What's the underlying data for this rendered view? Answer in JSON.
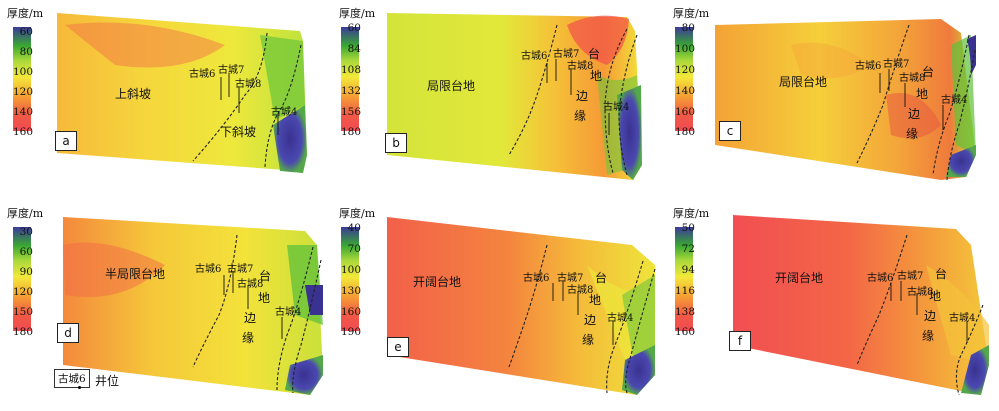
{
  "colorbar_title": "厚度/m",
  "panels": [
    {
      "label": "a",
      "ticks": [
        "60",
        "80",
        "100",
        "120",
        "140",
        "160"
      ],
      "regions": [
        "上斜坡",
        "下斜坡"
      ],
      "wells": [
        "古城6",
        "古城7",
        "古城8",
        "古城4"
      ]
    },
    {
      "label": "b",
      "ticks": [
        "60",
        "84",
        "108",
        "132",
        "156",
        "180"
      ],
      "regions": [
        "局限台地"
      ],
      "vertical": [
        "台",
        "地",
        "边",
        "缘"
      ],
      "wells": [
        "古城6",
        "古城7",
        "古城8",
        "古城4"
      ]
    },
    {
      "label": "c",
      "ticks": [
        "80",
        "100",
        "120",
        "140",
        "160",
        "180"
      ],
      "regions": [
        "局限台地"
      ],
      "vertical": [
        "台",
        "地",
        "边",
        "缘"
      ],
      "wells": [
        "古城6",
        "古城7",
        "古城8",
        "古城4"
      ]
    },
    {
      "label": "d",
      "ticks": [
        "30",
        "60",
        "90",
        "120",
        "150",
        "180"
      ],
      "regions": [
        "半局限台地"
      ],
      "vertical": [
        "台",
        "地",
        "边",
        "缘"
      ],
      "wells": [
        "古城6",
        "古城7",
        "古城8",
        "古城4"
      ]
    },
    {
      "label": "e",
      "ticks": [
        "40",
        "70",
        "100",
        "130",
        "160",
        "190"
      ],
      "regions": [
        "开阔台地"
      ],
      "vertical": [
        "台",
        "地",
        "边",
        "缘"
      ],
      "wells": [
        "古城6",
        "古城7",
        "古城8",
        "古城4"
      ]
    },
    {
      "label": "f",
      "ticks": [
        "50",
        "72",
        "94",
        "116",
        "138",
        "160"
      ],
      "regions": [
        "开阔台地"
      ],
      "vertical": [
        "台",
        "地",
        "边",
        "缘"
      ],
      "wells": [
        "古城6",
        "古城7",
        "古城8",
        "古城4"
      ]
    }
  ],
  "legend": {
    "sample_well": "古城6",
    "text": "井位"
  }
}
